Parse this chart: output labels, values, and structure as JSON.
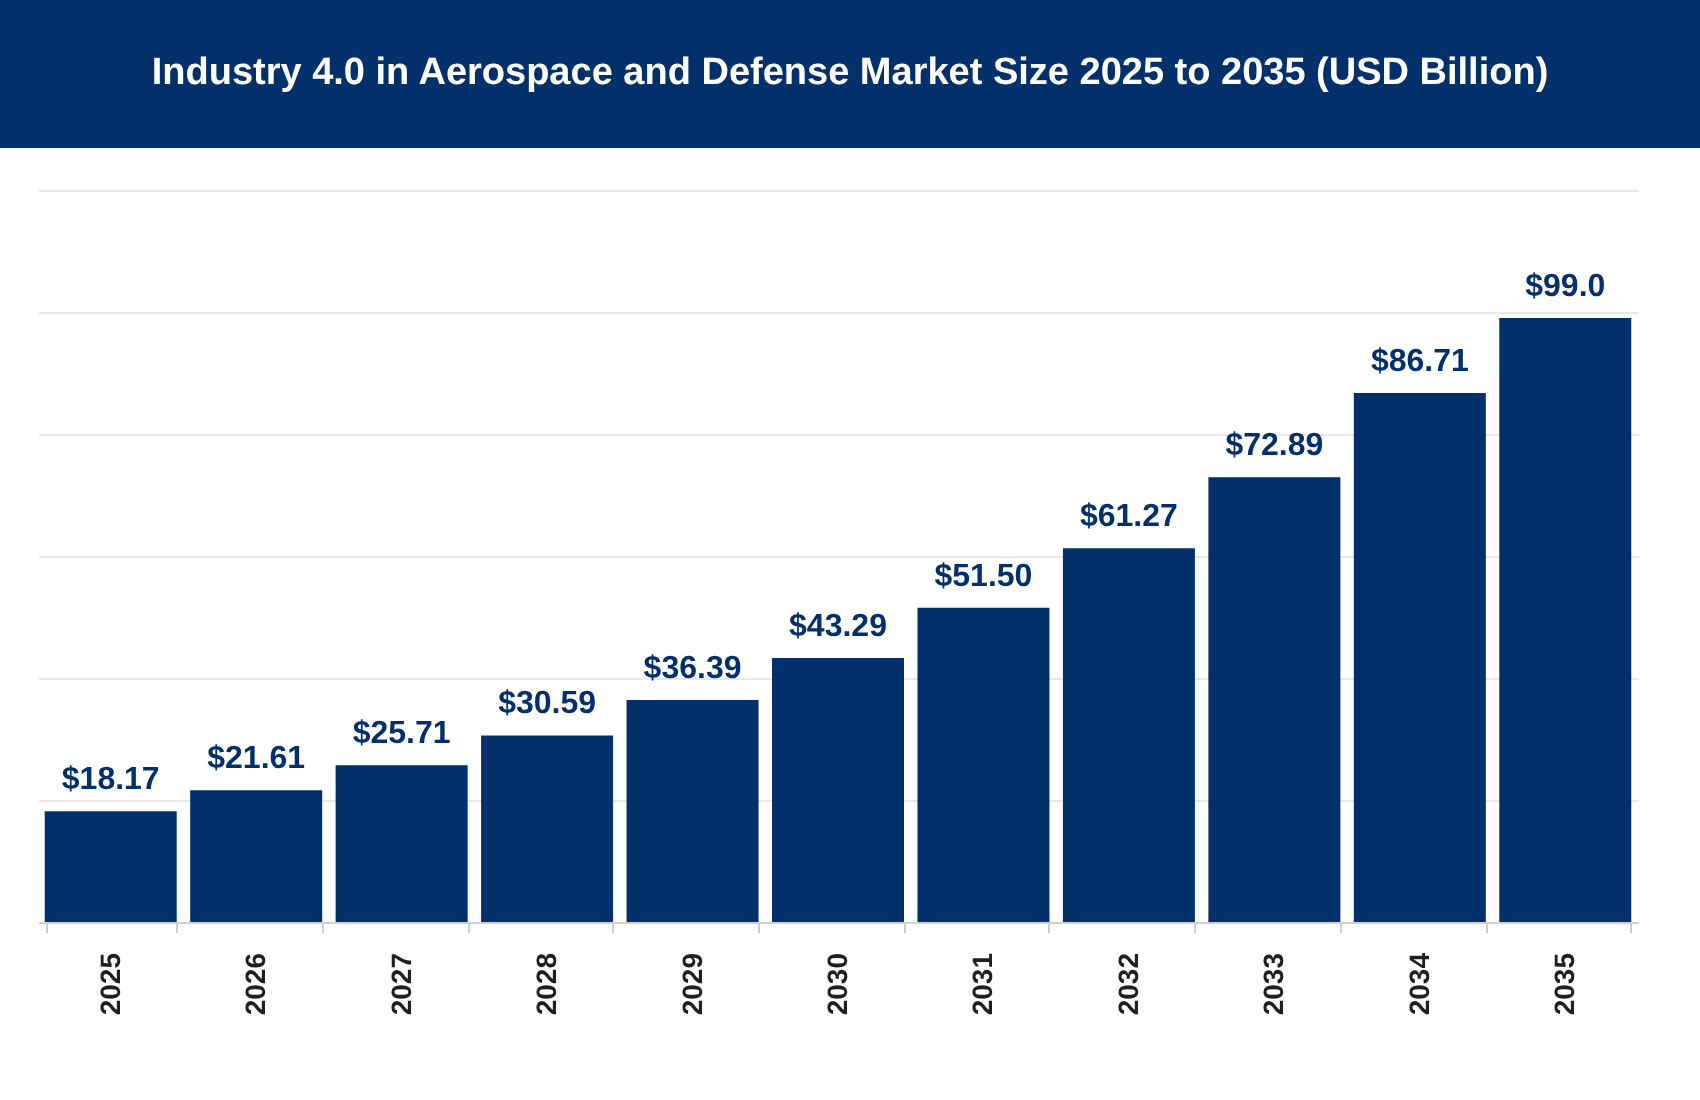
{
  "chart_data": {
    "type": "bar",
    "title": "Industry 4.0 in Aerospace and Defense Market Size 2025 to 2035 (USD Billion)",
    "categories": [
      "2025",
      "2026",
      "2027",
      "2028",
      "2029",
      "2030",
      "2031",
      "2032",
      "2033",
      "2034",
      "2035"
    ],
    "values": [
      18.17,
      21.61,
      25.71,
      30.59,
      36.39,
      43.29,
      51.5,
      61.27,
      72.89,
      86.71,
      99.0
    ],
    "value_labels": [
      "$18.17",
      "$21.61",
      "$25.71",
      "$30.59",
      "$36.39",
      "$43.29",
      "$51.50",
      "$61.27",
      "$72.89",
      "$86.71",
      "$99.0"
    ],
    "color": "#02306b",
    "ylim": [
      0,
      120
    ],
    "yticks": [
      {
        "value": 0,
        "label": null
      },
      {
        "value": 20,
        "label": null
      },
      {
        "value": 40,
        "label": null
      },
      {
        "value": 60,
        "label": null
      },
      {
        "value": 80,
        "label": null
      },
      {
        "value": 100,
        "label": null
      },
      {
        "value": 120,
        "label": null
      }
    ],
    "grid": "y"
  }
}
